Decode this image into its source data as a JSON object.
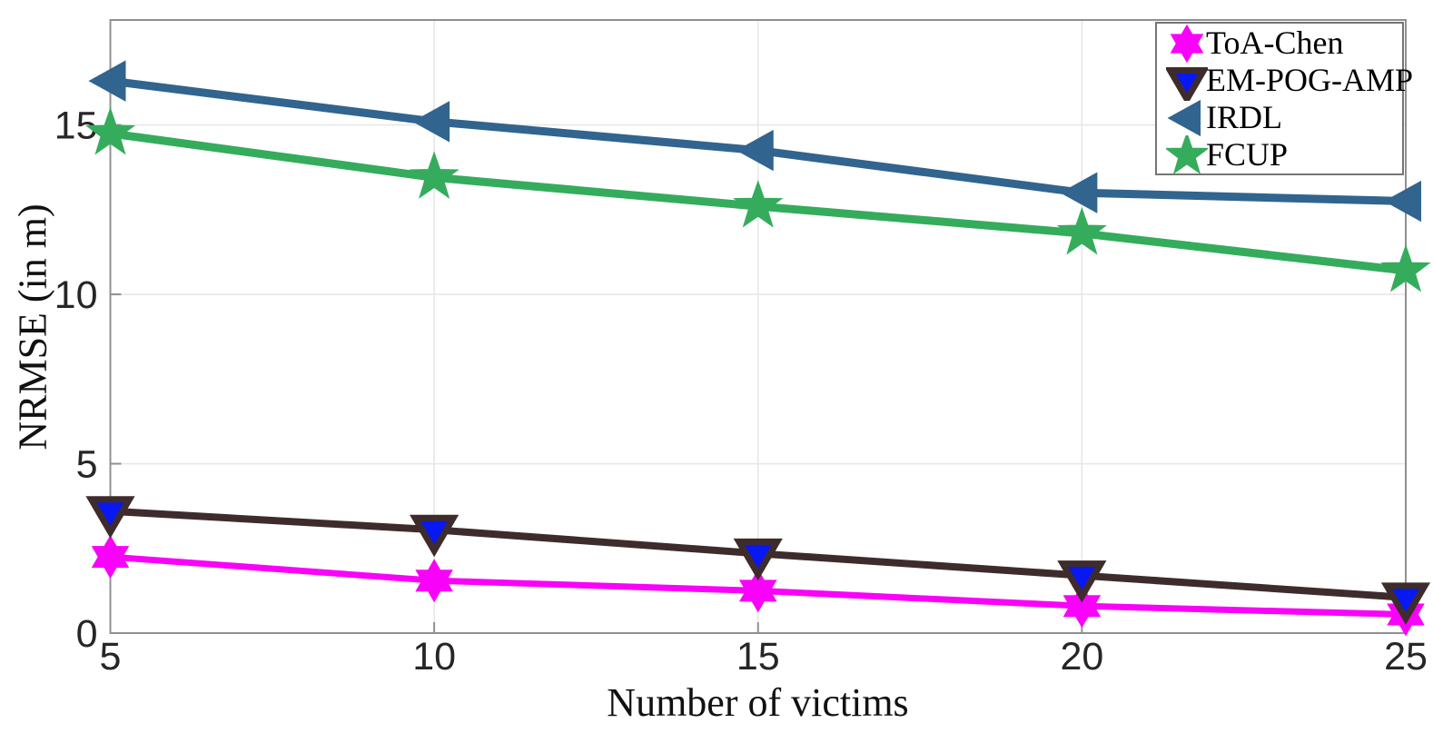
{
  "figure": {
    "background": "#ffffff",
    "box_color": "#909090",
    "grid_color": "#e7e7e7",
    "tick_label_color": "#262626"
  },
  "chart_data": {
    "type": "line",
    "title": "",
    "xlabel": "Number of victims",
    "ylabel": "NRMSE (in m)",
    "x": [
      5,
      10,
      15,
      20,
      25
    ],
    "xticks": [
      5,
      10,
      15,
      20,
      25
    ],
    "yticks": [
      0,
      5,
      10,
      15
    ],
    "xlim": [
      5,
      25
    ],
    "ylim": [
      0,
      18.1
    ],
    "grid": true,
    "legend_position": "top-right",
    "series": [
      {
        "name": "ToA-Chen",
        "color": "#F902F9",
        "marker": "hexagram",
        "marker_face": "#F902F9",
        "line_width": 7,
        "values": [
          2.25,
          1.55,
          1.25,
          0.8,
          0.55
        ]
      },
      {
        "name": "EM-POG-AMP",
        "color": "#3E2C2C",
        "marker": "triangle-down",
        "marker_face": "#0818F2",
        "line_width": 8,
        "values": [
          3.6,
          3.05,
          2.35,
          1.7,
          1.05
        ]
      },
      {
        "name": "IRDL",
        "color": "#31648E",
        "marker": "triangle-left",
        "marker_face": "#31648E",
        "line_width": 9,
        "values": [
          16.3,
          15.1,
          14.25,
          13.0,
          12.75
        ]
      },
      {
        "name": "FCUP",
        "color": "#34AC5C",
        "marker": "pentagram",
        "marker_face": "#34AC5C",
        "line_width": 9,
        "values": [
          14.75,
          13.45,
          12.6,
          11.8,
          10.7
        ]
      }
    ]
  }
}
